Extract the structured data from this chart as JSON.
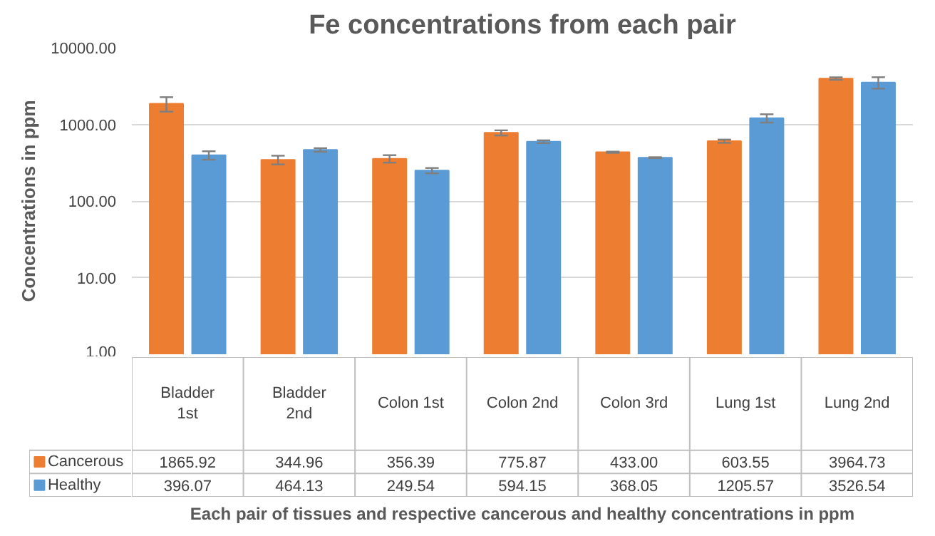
{
  "chart_data": {
    "type": "bar",
    "title": "Fe concentrations from each pair",
    "ylabel": "Concentrations in ppm",
    "xlabel": "Each pair of tissues and respective cancerous and healthy concentrations in ppm",
    "categories": [
      "Bladder 1st",
      "Bladder 2nd",
      "Colon 1st",
      "Colon 2nd",
      "Colon 3rd",
      "Lung 1st",
      "Lung 2nd"
    ],
    "series": [
      {
        "name": "Cancerous",
        "color": "#ed7d31",
        "values": [
          1865.92,
          344.96,
          356.39,
          775.87,
          433.0,
          603.55,
          3964.73
        ],
        "errors": [
          400,
          45,
          40,
          60,
          8,
          30,
          150
        ],
        "value_labels": [
          "1865.92",
          "344.96",
          "356.39",
          "775.87",
          "433.00",
          "603.55",
          "3964.73"
        ]
      },
      {
        "name": "Healthy",
        "color": "#5b9bd5",
        "values": [
          396.07,
          464.13,
          249.54,
          594.15,
          368.05,
          1205.57,
          3526.54
        ],
        "errors": [
          50,
          25,
          20,
          25,
          5,
          150,
          600
        ],
        "value_labels": [
          "396.07",
          "464.13",
          "249.54",
          "594.15",
          "368.05",
          "1205.57",
          "3526.54"
        ]
      }
    ],
    "log": true,
    "ylim": [
      1,
      10000
    ],
    "yticks": [
      {
        "value": 1,
        "label": "1.00"
      },
      {
        "value": 10,
        "label": "10.00"
      },
      {
        "value": 100,
        "label": "100.00"
      },
      {
        "value": 1000,
        "label": "1000.00"
      },
      {
        "value": 10000,
        "label": "10000.00"
      }
    ],
    "grid": "y",
    "legend": "bottom"
  }
}
